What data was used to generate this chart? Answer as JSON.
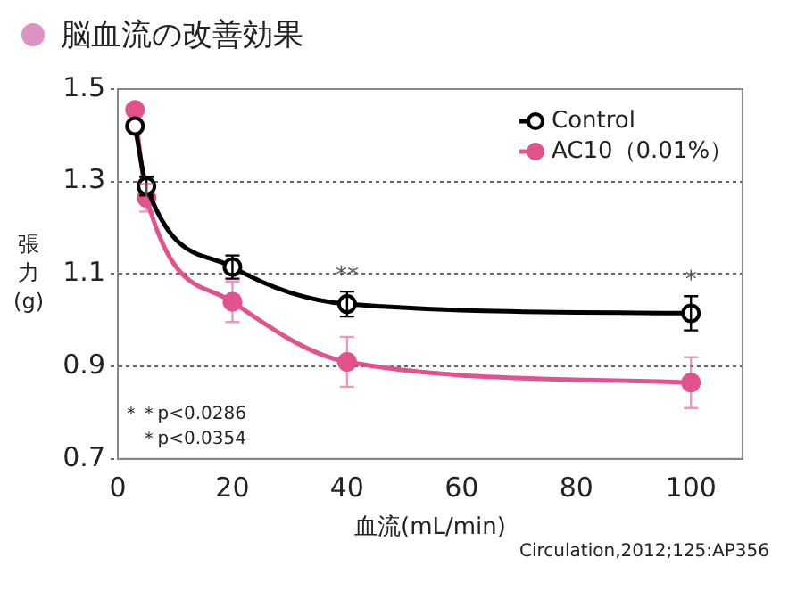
{
  "chart_data": {
    "type": "line",
    "title": "脳血流の改善効果",
    "xlabel": "血流(mL/min)",
    "ylabel": "張力(g)",
    "x": [
      3,
      5,
      20,
      40,
      100
    ],
    "series": [
      {
        "name": "Control",
        "color": "#000000",
        "values": [
          1.42,
          1.29,
          1.115,
          1.035,
          1.015
        ],
        "errors": [
          null,
          0.02,
          0.025,
          0.027,
          0.037
        ]
      },
      {
        "name": "AC10（0.01%）",
        "color": "#e2528e",
        "values": [
          1.455,
          1.265,
          1.04,
          0.91,
          0.865
        ],
        "errors": [
          null,
          0.03,
          0.044,
          0.054,
          0.055
        ]
      }
    ],
    "xlim": [
      0,
      109
    ],
    "xticks": [
      0,
      20,
      40,
      60,
      80,
      100
    ],
    "ylim": [
      0.7,
      1.5
    ],
    "yticks": [
      0.7,
      0.9,
      1.1,
      1.3,
      1.5
    ],
    "grid": "y",
    "legend": "top right",
    "marker": "circle",
    "line_style": "solid",
    "annotations": [
      {
        "text": "**",
        "x": 40,
        "y": 1.07
      },
      {
        "text": "*",
        "x": 100,
        "y": 1.06
      },
      "＊＊p<0.0286",
      "＊p<0.0354",
      "Circulation,2012;125:AP356"
    ]
  }
}
